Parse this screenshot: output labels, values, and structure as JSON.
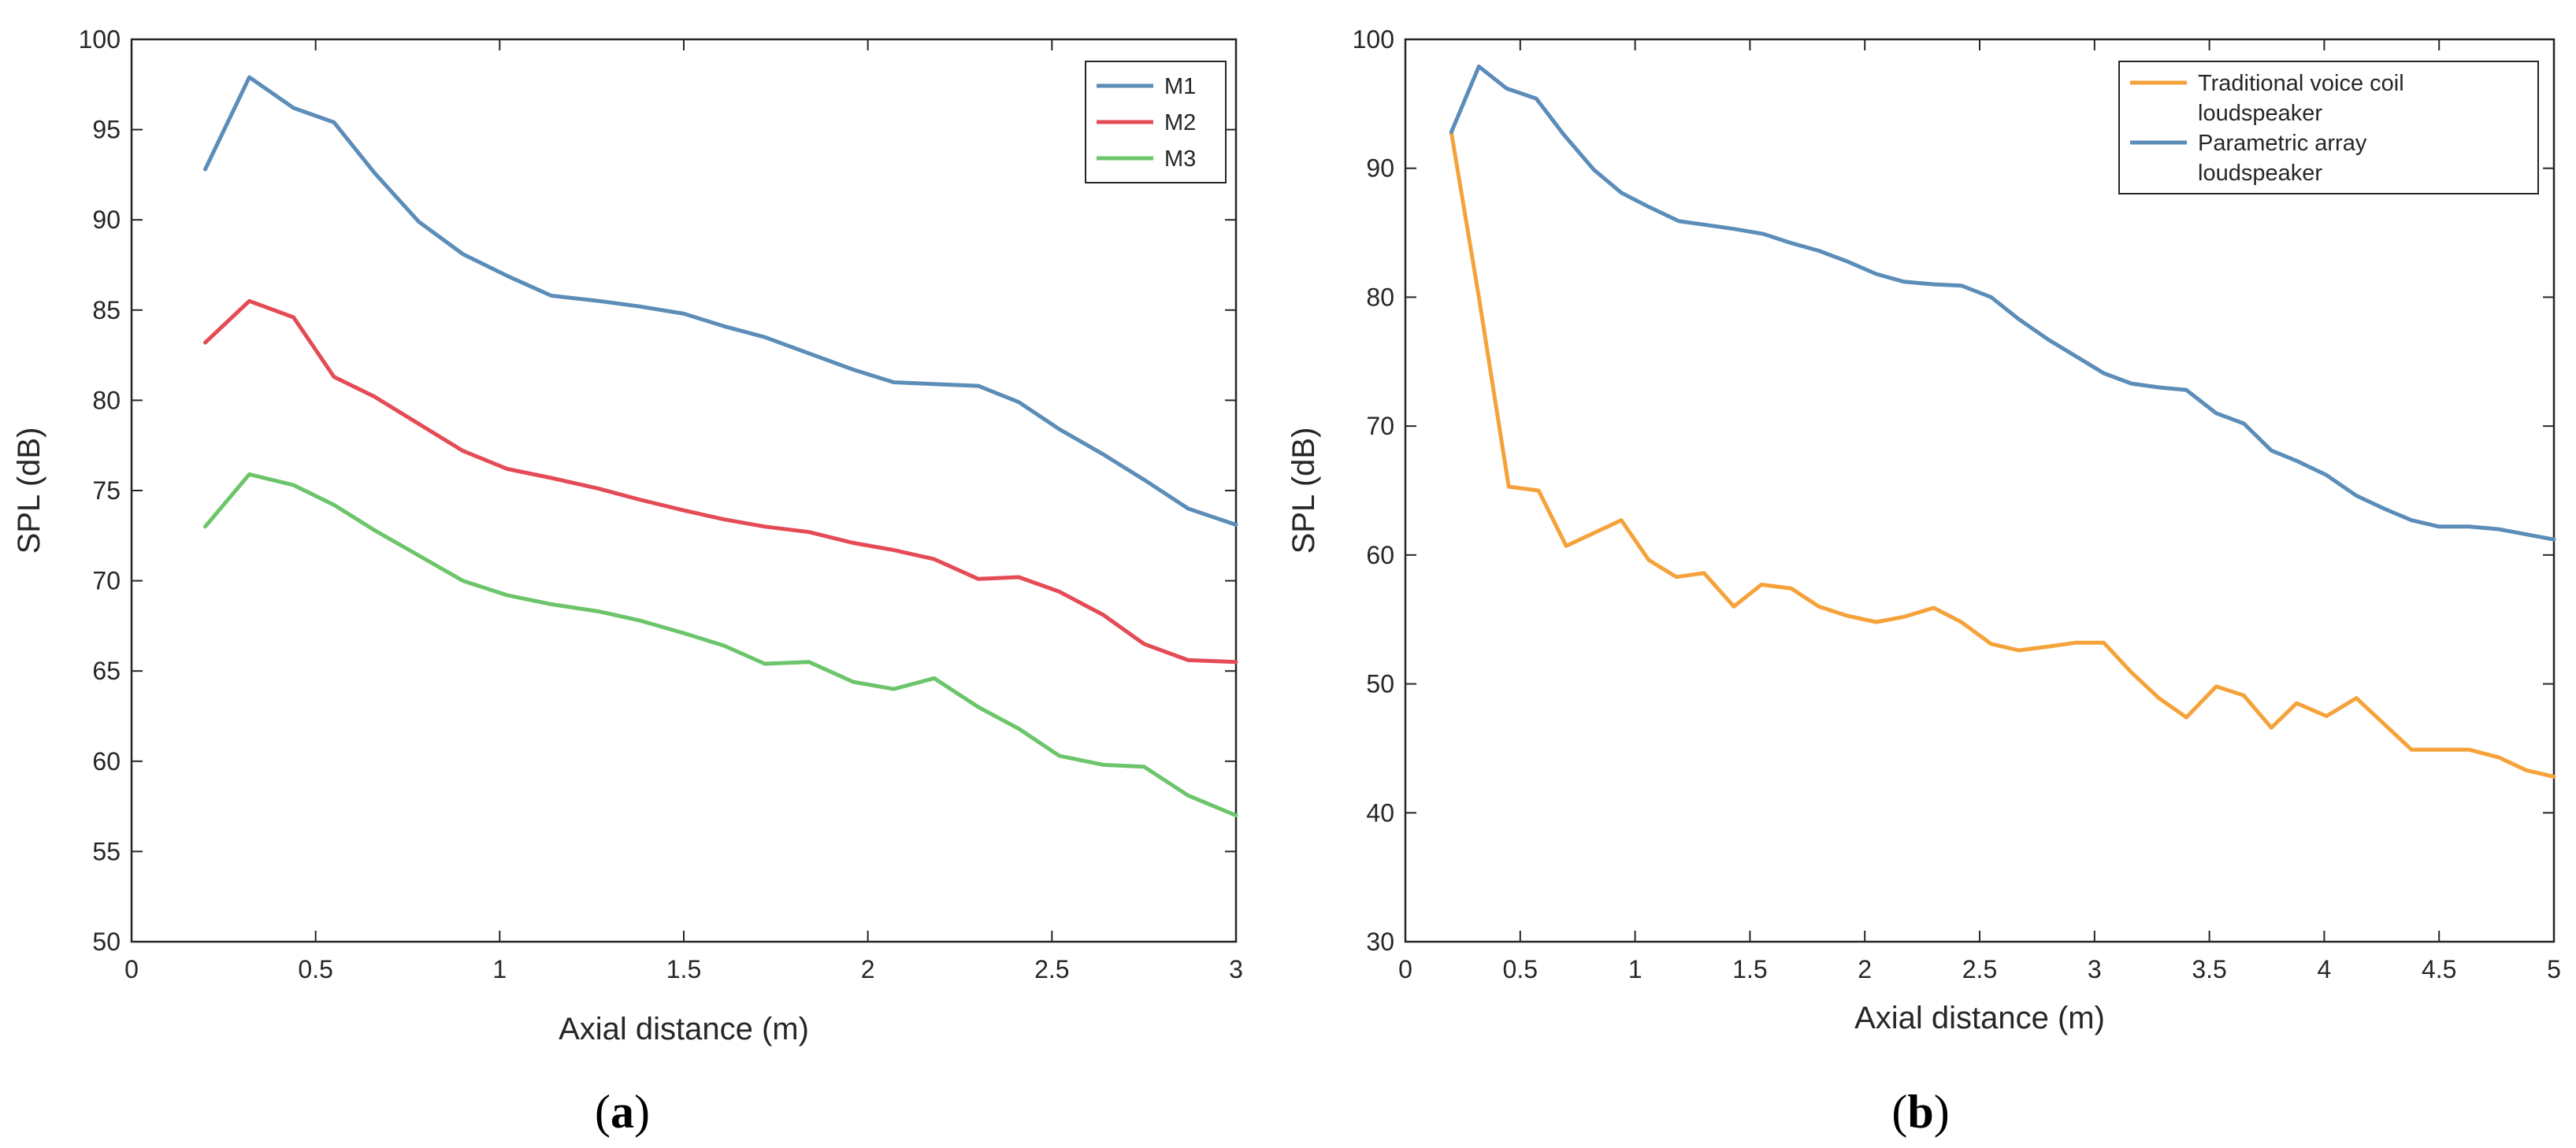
{
  "chart_data": [
    {
      "type": "line",
      "caption_open": "(",
      "caption_letter": "a",
      "caption_close": ")",
      "xlabel": "Axial distance (m)",
      "ylabel": "SPL (dB)",
      "xlim": [
        0,
        3
      ],
      "ylim": [
        50,
        100
      ],
      "xticks": [
        0,
        0.5,
        1,
        1.5,
        2,
        2.5,
        3
      ],
      "xtick_labels": [
        "0",
        "0.5",
        "1",
        "1.5",
        "2",
        "2.5",
        "3"
      ],
      "yticks": [
        50,
        55,
        60,
        65,
        70,
        75,
        80,
        85,
        90,
        95,
        100
      ],
      "ytick_labels": [
        "50",
        "55",
        "60",
        "65",
        "70",
        "75",
        "80",
        "85",
        "90",
        "95",
        "100"
      ],
      "legend_position": "top-right",
      "series": [
        {
          "name": "M1",
          "color": "#5b8db8",
          "points": [
            [
              0.2,
              92.8
            ],
            [
              0.32,
              97.9
            ],
            [
              0.44,
              96.2
            ],
            [
              0.55,
              95.4
            ],
            [
              0.66,
              92.6
            ],
            [
              0.78,
              89.9
            ],
            [
              0.9,
              88.1
            ],
            [
              1.02,
              86.9
            ],
            [
              1.14,
              85.8
            ],
            [
              1.27,
              85.5
            ],
            [
              1.38,
              85.2
            ],
            [
              1.5,
              84.8
            ],
            [
              1.61,
              84.1
            ],
            [
              1.72,
              83.5
            ],
            [
              1.84,
              82.6
            ],
            [
              1.96,
              81.7
            ],
            [
              2.07,
              81.0
            ],
            [
              2.18,
              80.9
            ],
            [
              2.3,
              80.8
            ],
            [
              2.41,
              79.9
            ],
            [
              2.52,
              78.4
            ],
            [
              2.64,
              77.0
            ],
            [
              2.75,
              75.6
            ],
            [
              2.87,
              74.0
            ],
            [
              3.0,
              73.1
            ]
          ]
        },
        {
          "name": "M2",
          "color": "#e44b55",
          "points": [
            [
              0.2,
              83.2
            ],
            [
              0.32,
              85.5
            ],
            [
              0.44,
              84.6
            ],
            [
              0.55,
              81.3
            ],
            [
              0.66,
              80.2
            ],
            [
              0.78,
              78.7
            ],
            [
              0.9,
              77.2
            ],
            [
              1.02,
              76.2
            ],
            [
              1.14,
              75.7
            ],
            [
              1.27,
              75.1
            ],
            [
              1.38,
              74.5
            ],
            [
              1.5,
              73.9
            ],
            [
              1.61,
              73.4
            ],
            [
              1.72,
              73.0
            ],
            [
              1.84,
              72.7
            ],
            [
              1.96,
              72.1
            ],
            [
              2.07,
              71.7
            ],
            [
              2.18,
              71.2
            ],
            [
              2.3,
              70.1
            ],
            [
              2.41,
              70.2
            ],
            [
              2.52,
              69.4
            ],
            [
              2.64,
              68.1
            ],
            [
              2.75,
              66.5
            ],
            [
              2.87,
              65.6
            ],
            [
              3.0,
              65.5
            ]
          ]
        },
        {
          "name": "M3",
          "color": "#6cc56a",
          "points": [
            [
              0.2,
              73.0
            ],
            [
              0.32,
              75.9
            ],
            [
              0.44,
              75.3
            ],
            [
              0.55,
              74.2
            ],
            [
              0.66,
              72.8
            ],
            [
              0.78,
              71.4
            ],
            [
              0.9,
              70.0
            ],
            [
              1.02,
              69.2
            ],
            [
              1.14,
              68.7
            ],
            [
              1.27,
              68.3
            ],
            [
              1.38,
              67.8
            ],
            [
              1.5,
              67.1
            ],
            [
              1.61,
              66.4
            ],
            [
              1.72,
              65.4
            ],
            [
              1.84,
              65.5
            ],
            [
              1.96,
              64.4
            ],
            [
              2.07,
              64.0
            ],
            [
              2.18,
              64.6
            ],
            [
              2.3,
              63.0
            ],
            [
              2.41,
              61.8
            ],
            [
              2.52,
              60.3
            ],
            [
              2.64,
              59.8
            ],
            [
              2.75,
              59.7
            ],
            [
              2.87,
              58.1
            ],
            [
              3.0,
              57.0
            ]
          ]
        }
      ]
    },
    {
      "type": "line",
      "caption_open": "(",
      "caption_letter": "b",
      "caption_close": ")",
      "xlabel": "Axial distance (m)",
      "ylabel": "SPL (dB)",
      "xlim": [
        0,
        5
      ],
      "ylim": [
        30,
        100
      ],
      "xticks": [
        0,
        0.5,
        1,
        1.5,
        2,
        2.5,
        3,
        3.5,
        4,
        4.5,
        5
      ],
      "xtick_labels": [
        "0",
        "0.5",
        "1",
        "1.5",
        "2",
        "2.5",
        "3",
        "3.5",
        "4",
        "4.5",
        "5"
      ],
      "yticks": [
        30,
        40,
        50,
        60,
        70,
        80,
        90,
        100
      ],
      "ytick_labels": [
        "30",
        "40",
        "50",
        "60",
        "70",
        "80",
        "90",
        "100"
      ],
      "legend_position": "top-right",
      "series": [
        {
          "name": "Traditional voice coil loudspeaker",
          "legend_lines": [
            "Traditional voice coil",
            "loudspeaker"
          ],
          "color": "#f5a23a",
          "points": [
            [
              0.2,
              92.8
            ],
            [
              0.32,
              80.0
            ],
            [
              0.45,
              65.3
            ],
            [
              0.58,
              65.0
            ],
            [
              0.7,
              60.7
            ],
            [
              0.82,
              61.7
            ],
            [
              0.94,
              62.7
            ],
            [
              1.06,
              59.6
            ],
            [
              1.18,
              58.3
            ],
            [
              1.3,
              58.6
            ],
            [
              1.43,
              56.0
            ],
            [
              1.55,
              57.7
            ],
            [
              1.68,
              57.4
            ],
            [
              1.8,
              56.0
            ],
            [
              1.92,
              55.3
            ],
            [
              2.05,
              54.8
            ],
            [
              2.17,
              55.2
            ],
            [
              2.3,
              55.9
            ],
            [
              2.42,
              54.8
            ],
            [
              2.55,
              53.1
            ],
            [
              2.67,
              52.6
            ],
            [
              2.8,
              52.9
            ],
            [
              2.92,
              53.2
            ],
            [
              3.04,
              53.2
            ],
            [
              3.16,
              50.9
            ],
            [
              3.28,
              48.9
            ],
            [
              3.4,
              47.4
            ],
            [
              3.53,
              49.8
            ],
            [
              3.65,
              49.1
            ],
            [
              3.77,
              46.6
            ],
            [
              3.88,
              48.5
            ],
            [
              4.01,
              47.5
            ],
            [
              4.14,
              48.9
            ],
            [
              4.26,
              46.9
            ],
            [
              4.38,
              44.9
            ],
            [
              4.5,
              44.9
            ],
            [
              4.63,
              44.9
            ],
            [
              4.76,
              44.3
            ],
            [
              4.88,
              43.3
            ],
            [
              5.0,
              42.8
            ]
          ]
        },
        {
          "name": "Parametric array loudspeaker",
          "legend_lines": [
            "Parametric array",
            "loudspeaker"
          ],
          "color": "#5b8db8",
          "points": [
            [
              0.2,
              92.8
            ],
            [
              0.32,
              97.9
            ],
            [
              0.44,
              96.2
            ],
            [
              0.57,
              95.4
            ],
            [
              0.69,
              92.6
            ],
            [
              0.82,
              89.9
            ],
            [
              0.94,
              88.1
            ],
            [
              1.06,
              87.0
            ],
            [
              1.19,
              85.9
            ],
            [
              1.31,
              85.6
            ],
            [
              1.43,
              85.3
            ],
            [
              1.56,
              84.9
            ],
            [
              1.68,
              84.2
            ],
            [
              1.8,
              83.6
            ],
            [
              1.92,
              82.8
            ],
            [
              2.05,
              81.8
            ],
            [
              2.17,
              81.2
            ],
            [
              2.3,
              81.0
            ],
            [
              2.42,
              80.9
            ],
            [
              2.55,
              80.0
            ],
            [
              2.67,
              78.3
            ],
            [
              2.8,
              76.7
            ],
            [
              2.92,
              75.4
            ],
            [
              3.04,
              74.1
            ],
            [
              3.16,
              73.3
            ],
            [
              3.28,
              73.0
            ],
            [
              3.4,
              72.8
            ],
            [
              3.53,
              71.0
            ],
            [
              3.65,
              70.2
            ],
            [
              3.77,
              68.1
            ],
            [
              3.88,
              67.3
            ],
            [
              4.01,
              66.2
            ],
            [
              4.14,
              64.6
            ],
            [
              4.26,
              63.6
            ],
            [
              4.38,
              62.7
            ],
            [
              4.5,
              62.2
            ],
            [
              4.63,
              62.2
            ],
            [
              4.76,
              62.0
            ],
            [
              4.88,
              61.6
            ],
            [
              5.0,
              61.2
            ]
          ]
        }
      ]
    }
  ]
}
